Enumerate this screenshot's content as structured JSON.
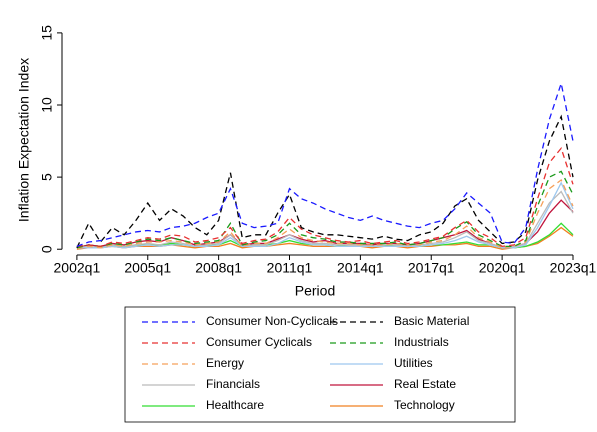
{
  "chart_data": {
    "type": "line",
    "y_label": "Inflation Expectation Index",
    "x_label": "Period",
    "x": [
      2002,
      2002.5,
      2003,
      2003.5,
      2004,
      2004.5,
      2005,
      2005.5,
      2006,
      2006.5,
      2007,
      2007.5,
      2008,
      2008.5,
      2009,
      2009.5,
      2010,
      2010.5,
      2011,
      2011.5,
      2012,
      2012.5,
      2013,
      2013.5,
      2014,
      2014.5,
      2015,
      2015.5,
      2016,
      2016.5,
      2017,
      2017.5,
      2018,
      2018.5,
      2019,
      2019.5,
      2020,
      2020.5,
      2021,
      2021.5,
      2022,
      2022.5,
      2023
    ],
    "xlim": [
      2001.37,
      2023.72
    ],
    "xticks": [
      {
        "value": 2002,
        "label": "2002q1"
      },
      {
        "value": 2005,
        "label": "2005q1"
      },
      {
        "value": 2008,
        "label": "2008q1"
      },
      {
        "value": 2011,
        "label": "2011q1"
      },
      {
        "value": 2014,
        "label": "2014q1"
      },
      {
        "value": 2017,
        "label": "2017q1"
      },
      {
        "value": 2020,
        "label": "2020q1"
      },
      {
        "value": 2023,
        "label": "2023q1"
      }
    ],
    "ylim": [
      -0.4,
      15.2
    ],
    "yticks": [
      0,
      5,
      10,
      15
    ],
    "grid": false,
    "legend": "bottom",
    "series": [
      {
        "name": "Consumer Non-Cyclicals",
        "color": "#1a1aff",
        "style": "dash",
        "values": [
          0.2,
          0.5,
          0.6,
          0.8,
          1.0,
          1.2,
          1.3,
          1.2,
          1.5,
          1.6,
          1.8,
          2.2,
          2.5,
          4.2,
          1.8,
          1.5,
          1.6,
          1.8,
          4.2,
          3.5,
          3.2,
          2.8,
          2.5,
          2.2,
          2.0,
          2.3,
          2.0,
          1.8,
          1.6,
          1.5,
          1.8,
          2.0,
          2.8,
          3.9,
          3.2,
          2.5,
          0.5,
          0.4,
          1.5,
          5.5,
          9.0,
          11.5,
          7.5
        ]
      },
      {
        "name": "Basic Material",
        "color": "#000000",
        "style": "dash",
        "values": [
          0.1,
          1.8,
          0.5,
          1.5,
          1.0,
          2.0,
          3.2,
          2.0,
          2.8,
          2.3,
          1.5,
          1.0,
          2.0,
          5.3,
          0.8,
          1.0,
          1.0,
          2.5,
          3.8,
          1.5,
          1.2,
          1.0,
          1.0,
          0.9,
          0.8,
          0.7,
          0.9,
          0.7,
          0.6,
          1.0,
          1.2,
          1.8,
          3.0,
          3.5,
          2.0,
          1.2,
          0.4,
          0.5,
          1.2,
          4.8,
          7.5,
          9.2,
          5.0
        ]
      },
      {
        "name": "Consumer Cyclicals",
        "color": "#e83030",
        "style": "dash",
        "values": [
          0.2,
          0.3,
          0.2,
          0.5,
          0.4,
          0.6,
          0.8,
          0.7,
          1.0,
          0.9,
          0.5,
          0.6,
          0.8,
          1.5,
          0.4,
          0.6,
          0.7,
          1.2,
          2.2,
          1.4,
          1.0,
          0.8,
          0.6,
          0.5,
          0.6,
          0.4,
          0.5,
          0.6,
          0.4,
          0.5,
          0.7,
          0.9,
          1.5,
          2.0,
          1.2,
          0.8,
          0.2,
          0.3,
          0.8,
          3.5,
          6.0,
          7.0,
          4.5
        ]
      },
      {
        "name": "Industrials",
        "color": "#1a9a1a",
        "style": "dash",
        "values": [
          0.1,
          0.3,
          0.2,
          0.4,
          0.3,
          0.5,
          0.7,
          0.6,
          0.8,
          0.6,
          0.4,
          0.5,
          0.6,
          1.8,
          0.3,
          0.5,
          0.6,
          1.0,
          1.8,
          1.0,
          0.8,
          0.7,
          0.5,
          0.5,
          0.4,
          0.4,
          0.4,
          0.5,
          0.3,
          0.4,
          0.6,
          0.8,
          1.4,
          1.9,
          1.0,
          0.6,
          0.2,
          0.2,
          0.6,
          3.0,
          5.0,
          5.4,
          3.8
        ]
      },
      {
        "name": "Energy",
        "color": "#f5a05a",
        "style": "dash",
        "values": [
          0.1,
          0.2,
          0.1,
          0.3,
          0.2,
          0.4,
          0.5,
          0.5,
          0.6,
          0.5,
          0.3,
          0.4,
          0.5,
          1.2,
          0.2,
          0.4,
          0.4,
          0.8,
          1.4,
          0.8,
          0.6,
          0.5,
          0.4,
          0.4,
          0.3,
          0.3,
          0.3,
          0.4,
          0.3,
          0.3,
          0.5,
          0.6,
          1.0,
          1.6,
          0.8,
          0.5,
          0.1,
          0.2,
          0.5,
          2.5,
          4.2,
          4.8,
          3.0
        ]
      },
      {
        "name": "Utilities",
        "color": "#9dc8ef",
        "style": "solid",
        "values": [
          0.1,
          0.1,
          0.1,
          0.2,
          0.1,
          0.2,
          0.3,
          0.2,
          0.3,
          0.3,
          0.2,
          0.2,
          0.3,
          0.8,
          0.2,
          0.2,
          0.2,
          0.4,
          0.8,
          0.5,
          0.3,
          0.3,
          0.2,
          0.2,
          0.2,
          0.2,
          0.2,
          0.2,
          0.2,
          0.2,
          0.3,
          0.4,
          0.6,
          0.9,
          0.5,
          0.3,
          0.1,
          0.1,
          0.3,
          1.5,
          3.0,
          4.6,
          2.8
        ]
      },
      {
        "name": "Financials",
        "color": "#bbbbbb",
        "style": "solid",
        "values": [
          0.1,
          0.2,
          0.1,
          0.3,
          0.2,
          0.3,
          0.4,
          0.3,
          0.5,
          0.4,
          0.2,
          0.3,
          0.4,
          1.0,
          0.2,
          0.3,
          0.3,
          0.6,
          1.0,
          0.6,
          0.4,
          0.4,
          0.3,
          0.3,
          0.3,
          0.2,
          0.3,
          0.3,
          0.2,
          0.3,
          0.4,
          0.5,
          0.8,
          1.2,
          0.6,
          0.4,
          0.1,
          0.2,
          0.4,
          1.8,
          3.2,
          4.0,
          2.5
        ]
      },
      {
        "name": "Real Estate",
        "color": "#c0143c",
        "style": "solid",
        "values": [
          0.1,
          0.3,
          0.2,
          0.4,
          0.3,
          0.5,
          0.6,
          0.5,
          0.8,
          0.6,
          0.3,
          0.4,
          0.5,
          1.0,
          0.3,
          0.4,
          0.4,
          0.7,
          1.0,
          0.7,
          0.5,
          0.6,
          0.4,
          0.4,
          0.4,
          0.3,
          0.4,
          0.4,
          0.3,
          0.4,
          0.6,
          0.8,
          1.0,
          1.3,
          0.7,
          0.4,
          0.1,
          0.2,
          0.4,
          1.2,
          2.5,
          3.4,
          2.6
        ]
      },
      {
        "name": "Healthcare",
        "color": "#33dd33",
        "style": "solid",
        "values": [
          0.1,
          0.3,
          0.2,
          0.3,
          0.2,
          0.3,
          0.3,
          0.3,
          0.4,
          0.3,
          0.2,
          0.3,
          0.3,
          0.6,
          0.2,
          0.3,
          0.3,
          0.4,
          0.6,
          0.4,
          0.3,
          0.3,
          0.2,
          0.3,
          0.3,
          0.2,
          0.2,
          0.3,
          0.2,
          0.2,
          0.3,
          0.3,
          0.4,
          0.5,
          0.3,
          0.3,
          0.1,
          0.1,
          0.2,
          0.5,
          1.0,
          1.8,
          1.0
        ]
      },
      {
        "name": "Technology",
        "color": "#f08020",
        "style": "solid",
        "values": [
          0.0,
          0.1,
          0.1,
          0.2,
          0.1,
          0.2,
          0.2,
          0.2,
          0.3,
          0.2,
          0.1,
          0.2,
          0.2,
          0.4,
          0.1,
          0.2,
          0.2,
          0.3,
          0.4,
          0.3,
          0.2,
          0.2,
          0.2,
          0.2,
          0.2,
          0.1,
          0.2,
          0.2,
          0.1,
          0.2,
          0.2,
          0.3,
          0.3,
          0.4,
          0.2,
          0.2,
          0.0,
          0.1,
          0.2,
          0.4,
          0.9,
          1.5,
          0.9
        ]
      }
    ]
  }
}
